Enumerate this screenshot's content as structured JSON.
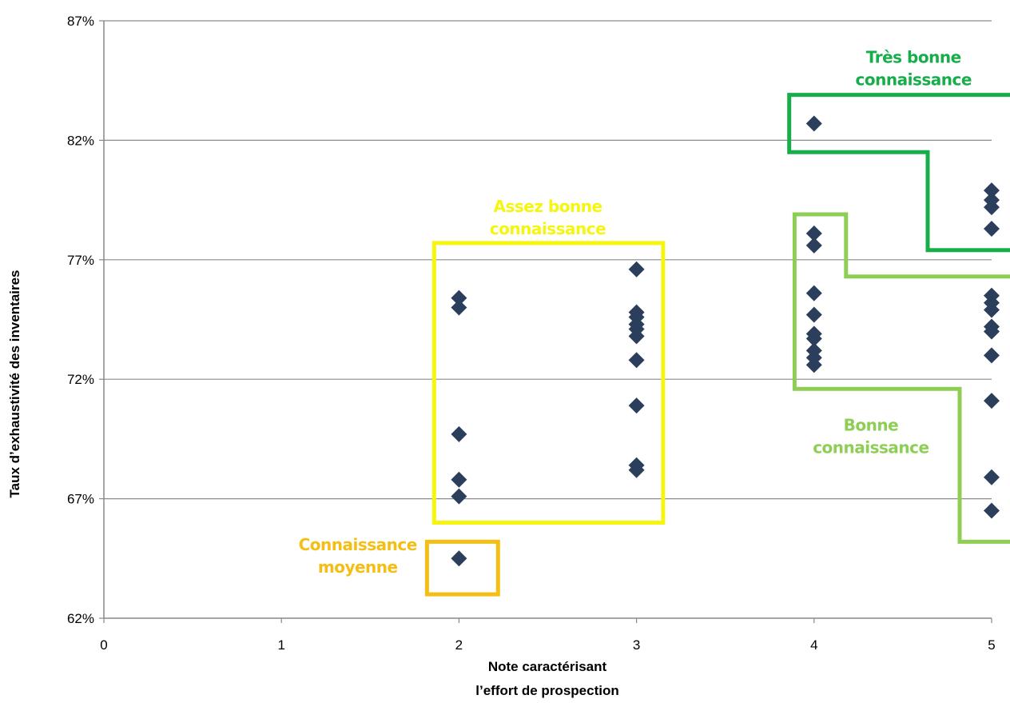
{
  "chart_data": {
    "type": "scatter",
    "title": "",
    "xlabel_lines": [
      "Note caractérisant",
      "l’effort de prospection"
    ],
    "ylabel": "Taux d’exhaustivité des inventaires",
    "xlim": [
      0,
      5
    ],
    "ylim": [
      62,
      87
    ],
    "x_ticks": [
      "0",
      "1",
      "2",
      "3",
      "4",
      "5"
    ],
    "y_ticks": [
      "62%",
      "67%",
      "72%",
      "77%",
      "82%",
      "87%"
    ],
    "y_tick_values": [
      62,
      67,
      72,
      77,
      82,
      87
    ],
    "grid": true,
    "marker": "diamond",
    "marker_color": "#2b3f5c",
    "points": [
      {
        "x": 2,
        "y": 64.5
      },
      {
        "x": 2,
        "y": 67.1
      },
      {
        "x": 2,
        "y": 67.8
      },
      {
        "x": 2,
        "y": 69.7
      },
      {
        "x": 2,
        "y": 75.0
      },
      {
        "x": 2,
        "y": 75.4
      },
      {
        "x": 3,
        "y": 68.2
      },
      {
        "x": 3,
        "y": 68.4
      },
      {
        "x": 3,
        "y": 70.9
      },
      {
        "x": 3,
        "y": 72.8
      },
      {
        "x": 3,
        "y": 73.8
      },
      {
        "x": 3,
        "y": 74.1
      },
      {
        "x": 3,
        "y": 74.3
      },
      {
        "x": 3,
        "y": 74.6
      },
      {
        "x": 3,
        "y": 74.8
      },
      {
        "x": 3,
        "y": 76.6
      },
      {
        "x": 4,
        "y": 72.6
      },
      {
        "x": 4,
        "y": 72.9
      },
      {
        "x": 4,
        "y": 73.2
      },
      {
        "x": 4,
        "y": 73.7
      },
      {
        "x": 4,
        "y": 73.9
      },
      {
        "x": 4,
        "y": 74.7
      },
      {
        "x": 4,
        "y": 75.6
      },
      {
        "x": 4,
        "y": 77.6
      },
      {
        "x": 4,
        "y": 78.1
      },
      {
        "x": 4,
        "y": 82.7
      },
      {
        "x": 5,
        "y": 66.5
      },
      {
        "x": 5,
        "y": 67.9
      },
      {
        "x": 5,
        "y": 71.1
      },
      {
        "x": 5,
        "y": 73.0
      },
      {
        "x": 5,
        "y": 74.0
      },
      {
        "x": 5,
        "y": 74.2
      },
      {
        "x": 5,
        "y": 74.9
      },
      {
        "x": 5,
        "y": 75.2
      },
      {
        "x": 5,
        "y": 75.5
      },
      {
        "x": 5,
        "y": 78.3
      },
      {
        "x": 5,
        "y": 79.2
      },
      {
        "x": 5,
        "y": 79.5
      },
      {
        "x": 5,
        "y": 79.9
      }
    ],
    "zones": [
      {
        "lines": [
          "Connaissance",
          "moyenne"
        ],
        "color": "#f5be14",
        "polygon": [
          [
            1.82,
            65.2
          ],
          [
            2.22,
            65.2
          ],
          [
            2.22,
            63.0
          ],
          [
            1.82,
            63.0
          ]
        ]
      },
      {
        "lines": [
          "Assez bonne",
          "connaissance"
        ],
        "color": "#f5f50f",
        "polygon": [
          [
            1.86,
            77.7
          ],
          [
            3.15,
            77.7
          ],
          [
            3.15,
            66.0
          ],
          [
            1.86,
            66.0
          ]
        ]
      },
      {
        "lines": [
          "Bonne",
          "connaissance"
        ],
        "color": "#8fce55",
        "polygon": [
          [
            3.89,
            71.6
          ],
          [
            4.82,
            71.6
          ],
          [
            4.82,
            65.2
          ],
          [
            5.15,
            65.2
          ],
          [
            5.15,
            76.3
          ],
          [
            4.18,
            76.3
          ],
          [
            4.18,
            78.9
          ],
          [
            3.89,
            78.9
          ]
        ]
      },
      {
        "lines": [
          "Très bonne",
          "connaissance"
        ],
        "color": "#17ad4b",
        "polygon": [
          [
            3.86,
            81.5
          ],
          [
            4.64,
            81.5
          ],
          [
            4.64,
            77.4
          ],
          [
            5.15,
            77.4
          ],
          [
            5.15,
            83.9
          ],
          [
            3.86,
            83.9
          ]
        ]
      }
    ]
  }
}
